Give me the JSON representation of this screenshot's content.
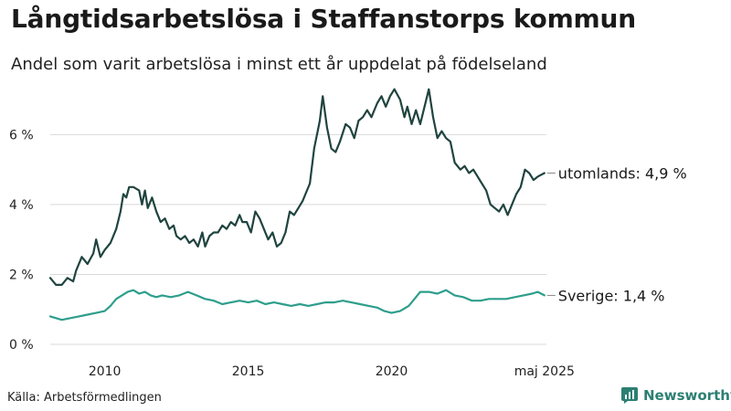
{
  "title": "Långtidsarbetslösa i Staffanstorps kommun",
  "subtitle": "Andel som varit arbetslösa i minst ett år uppdelat på födelseland",
  "source": "Källa: Arbetsförmedlingen",
  "brand": {
    "name": "Newsworthy",
    "logo_icon": "newsworthy-chart-icon"
  },
  "colors": {
    "utomlands": "#20443f",
    "sverige": "#2e9e8c",
    "grid": "#d9d9d9",
    "axis_text": "#222222"
  },
  "chart_data": {
    "type": "line",
    "xlim": [
      2008.1,
      2025.4
    ],
    "ylim": [
      0,
      7.5
    ],
    "yticks": [
      0,
      2,
      4,
      6
    ],
    "ytick_labels": [
      "0 %",
      "2 %",
      "4 %",
      "6 %"
    ],
    "xticks": [
      2010,
      2015,
      2020,
      2025.33
    ],
    "xtick_labels": [
      "2010",
      "2015",
      "2020",
      "maj 2025"
    ],
    "grid": "horizontal",
    "series": [
      {
        "name": "utomlands",
        "end_label": "utomlands: 4,9 %",
        "points": [
          [
            2008.1,
            1.9
          ],
          [
            2008.3,
            1.7
          ],
          [
            2008.5,
            1.7
          ],
          [
            2008.7,
            1.9
          ],
          [
            2008.9,
            1.8
          ],
          [
            2009.0,
            2.1
          ],
          [
            2009.2,
            2.5
          ],
          [
            2009.4,
            2.3
          ],
          [
            2009.6,
            2.6
          ],
          [
            2009.7,
            3.0
          ],
          [
            2009.85,
            2.5
          ],
          [
            2010.0,
            2.7
          ],
          [
            2010.2,
            2.9
          ],
          [
            2010.4,
            3.3
          ],
          [
            2010.55,
            3.8
          ],
          [
            2010.65,
            4.3
          ],
          [
            2010.75,
            4.2
          ],
          [
            2010.85,
            4.5
          ],
          [
            2011.0,
            4.5
          ],
          [
            2011.2,
            4.4
          ],
          [
            2011.3,
            4.0
          ],
          [
            2011.4,
            4.4
          ],
          [
            2011.5,
            3.9
          ],
          [
            2011.65,
            4.2
          ],
          [
            2011.8,
            3.8
          ],
          [
            2011.95,
            3.5
          ],
          [
            2012.1,
            3.6
          ],
          [
            2012.25,
            3.3
          ],
          [
            2012.4,
            3.4
          ],
          [
            2012.5,
            3.1
          ],
          [
            2012.65,
            3.0
          ],
          [
            2012.8,
            3.1
          ],
          [
            2012.95,
            2.9
          ],
          [
            2013.1,
            3.0
          ],
          [
            2013.25,
            2.8
          ],
          [
            2013.4,
            3.2
          ],
          [
            2013.5,
            2.8
          ],
          [
            2013.65,
            3.1
          ],
          [
            2013.8,
            3.2
          ],
          [
            2013.95,
            3.2
          ],
          [
            2014.1,
            3.4
          ],
          [
            2014.25,
            3.3
          ],
          [
            2014.4,
            3.5
          ],
          [
            2014.55,
            3.4
          ],
          [
            2014.7,
            3.7
          ],
          [
            2014.8,
            3.5
          ],
          [
            2014.95,
            3.5
          ],
          [
            2015.1,
            3.2
          ],
          [
            2015.25,
            3.8
          ],
          [
            2015.4,
            3.6
          ],
          [
            2015.55,
            3.3
          ],
          [
            2015.7,
            3.0
          ],
          [
            2015.85,
            3.2
          ],
          [
            2016.0,
            2.8
          ],
          [
            2016.15,
            2.9
          ],
          [
            2016.3,
            3.2
          ],
          [
            2016.45,
            3.8
          ],
          [
            2016.6,
            3.7
          ],
          [
            2016.75,
            3.9
          ],
          [
            2016.9,
            4.1
          ],
          [
            2017.0,
            4.3
          ],
          [
            2017.15,
            4.6
          ],
          [
            2017.3,
            5.6
          ],
          [
            2017.5,
            6.4
          ],
          [
            2017.6,
            7.1
          ],
          [
            2017.75,
            6.2
          ],
          [
            2017.9,
            5.6
          ],
          [
            2018.05,
            5.5
          ],
          [
            2018.2,
            5.8
          ],
          [
            2018.4,
            6.3
          ],
          [
            2018.55,
            6.2
          ],
          [
            2018.7,
            5.9
          ],
          [
            2018.85,
            6.4
          ],
          [
            2019.0,
            6.5
          ],
          [
            2019.15,
            6.7
          ],
          [
            2019.3,
            6.5
          ],
          [
            2019.5,
            6.9
          ],
          [
            2019.65,
            7.1
          ],
          [
            2019.8,
            6.8
          ],
          [
            2019.95,
            7.1
          ],
          [
            2020.1,
            7.3
          ],
          [
            2020.3,
            7.0
          ],
          [
            2020.45,
            6.5
          ],
          [
            2020.55,
            6.8
          ],
          [
            2020.7,
            6.3
          ],
          [
            2020.85,
            6.7
          ],
          [
            2021.0,
            6.3
          ],
          [
            2021.15,
            6.8
          ],
          [
            2021.3,
            7.3
          ],
          [
            2021.45,
            6.5
          ],
          [
            2021.6,
            5.9
          ],
          [
            2021.75,
            6.1
          ],
          [
            2021.9,
            5.9
          ],
          [
            2022.05,
            5.8
          ],
          [
            2022.2,
            5.2
          ],
          [
            2022.4,
            5.0
          ],
          [
            2022.55,
            5.1
          ],
          [
            2022.7,
            4.9
          ],
          [
            2022.85,
            5.0
          ],
          [
            2023.0,
            4.8
          ],
          [
            2023.15,
            4.6
          ],
          [
            2023.3,
            4.4
          ],
          [
            2023.45,
            4.0
          ],
          [
            2023.6,
            3.9
          ],
          [
            2023.75,
            3.8
          ],
          [
            2023.9,
            4.0
          ],
          [
            2024.05,
            3.7
          ],
          [
            2024.2,
            4.0
          ],
          [
            2024.35,
            4.3
          ],
          [
            2024.5,
            4.5
          ],
          [
            2024.65,
            5.0
          ],
          [
            2024.8,
            4.9
          ],
          [
            2024.95,
            4.7
          ],
          [
            2025.1,
            4.8
          ],
          [
            2025.33,
            4.9
          ]
        ]
      },
      {
        "name": "Sverige",
        "end_label": "Sverige: 1,4 %",
        "points": [
          [
            2008.1,
            0.8
          ],
          [
            2008.3,
            0.75
          ],
          [
            2008.5,
            0.7
          ],
          [
            2008.8,
            0.75
          ],
          [
            2009.1,
            0.8
          ],
          [
            2009.4,
            0.85
          ],
          [
            2009.7,
            0.9
          ],
          [
            2010.0,
            0.95
          ],
          [
            2010.2,
            1.1
          ],
          [
            2010.4,
            1.3
          ],
          [
            2010.6,
            1.4
          ],
          [
            2010.8,
            1.5
          ],
          [
            2011.0,
            1.55
          ],
          [
            2011.2,
            1.45
          ],
          [
            2011.4,
            1.5
          ],
          [
            2011.6,
            1.4
          ],
          [
            2011.8,
            1.35
          ],
          [
            2012.0,
            1.4
          ],
          [
            2012.3,
            1.35
          ],
          [
            2012.6,
            1.4
          ],
          [
            2012.9,
            1.5
          ],
          [
            2013.2,
            1.4
          ],
          [
            2013.5,
            1.3
          ],
          [
            2013.8,
            1.25
          ],
          [
            2014.1,
            1.15
          ],
          [
            2014.4,
            1.2
          ],
          [
            2014.7,
            1.25
          ],
          [
            2015.0,
            1.2
          ],
          [
            2015.3,
            1.25
          ],
          [
            2015.6,
            1.15
          ],
          [
            2015.9,
            1.2
          ],
          [
            2016.2,
            1.15
          ],
          [
            2016.5,
            1.1
          ],
          [
            2016.8,
            1.15
          ],
          [
            2017.1,
            1.1
          ],
          [
            2017.4,
            1.15
          ],
          [
            2017.7,
            1.2
          ],
          [
            2018.0,
            1.2
          ],
          [
            2018.3,
            1.25
          ],
          [
            2018.6,
            1.2
          ],
          [
            2018.9,
            1.15
          ],
          [
            2019.2,
            1.1
          ],
          [
            2019.5,
            1.05
          ],
          [
            2019.75,
            0.95
          ],
          [
            2020.0,
            0.9
          ],
          [
            2020.3,
            0.95
          ],
          [
            2020.6,
            1.1
          ],
          [
            2020.8,
            1.3
          ],
          [
            2021.0,
            1.5
          ],
          [
            2021.3,
            1.5
          ],
          [
            2021.6,
            1.45
          ],
          [
            2021.9,
            1.55
          ],
          [
            2022.2,
            1.4
          ],
          [
            2022.5,
            1.35
          ],
          [
            2022.8,
            1.25
          ],
          [
            2023.1,
            1.25
          ],
          [
            2023.4,
            1.3
          ],
          [
            2023.7,
            1.3
          ],
          [
            2024.0,
            1.3
          ],
          [
            2024.3,
            1.35
          ],
          [
            2024.6,
            1.4
          ],
          [
            2024.9,
            1.45
          ],
          [
            2025.1,
            1.5
          ],
          [
            2025.33,
            1.4
          ]
        ]
      }
    ]
  }
}
